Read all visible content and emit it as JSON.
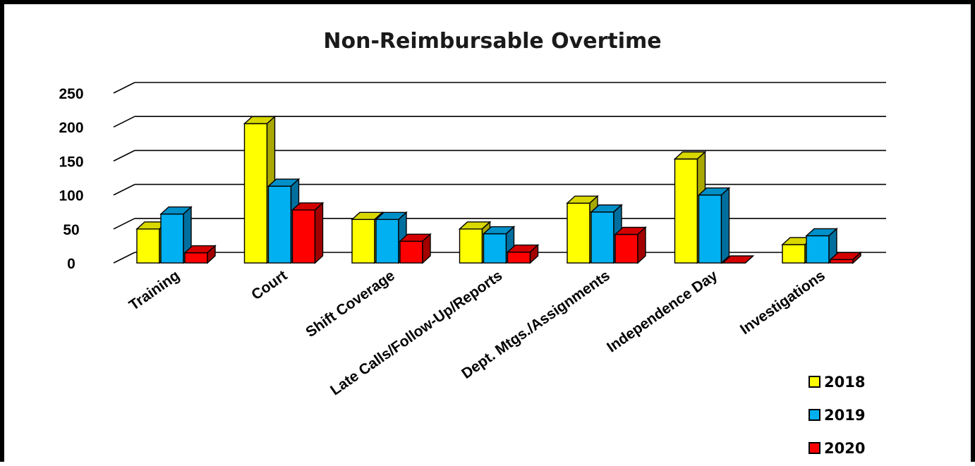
{
  "chart_data": {
    "type": "bar",
    "title": "Non-Reimbursable Overtime",
    "categories": [
      "Training",
      "Court",
      "Shift Coverage",
      "Late Calls/Follow-Up/Reports",
      "Dept. Mtgs./Assignments",
      "Independence Day",
      "Investigations"
    ],
    "series": [
      {
        "name": "2018",
        "values": [
          50,
          205,
          64,
          50,
          88,
          153,
          27
        ],
        "color": "#ffff00",
        "top": "#d8d800",
        "side": "#a8a800"
      },
      {
        "name": "2019",
        "values": [
          72,
          113,
          64,
          43,
          75,
          100,
          40
        ],
        "color": "#00b0f0",
        "top": "#0090c8",
        "side": "#006f9e"
      },
      {
        "name": "2020",
        "values": [
          15,
          78,
          32,
          16,
          42,
          0,
          5
        ],
        "color": "#ff0000",
        "top": "#d40000",
        "side": "#a30000"
      }
    ],
    "yticks": [
      0,
      50,
      100,
      150,
      200,
      250
    ],
    "ylim": [
      0,
      250
    ],
    "grid": true,
    "legend_position": "bottom-right"
  }
}
